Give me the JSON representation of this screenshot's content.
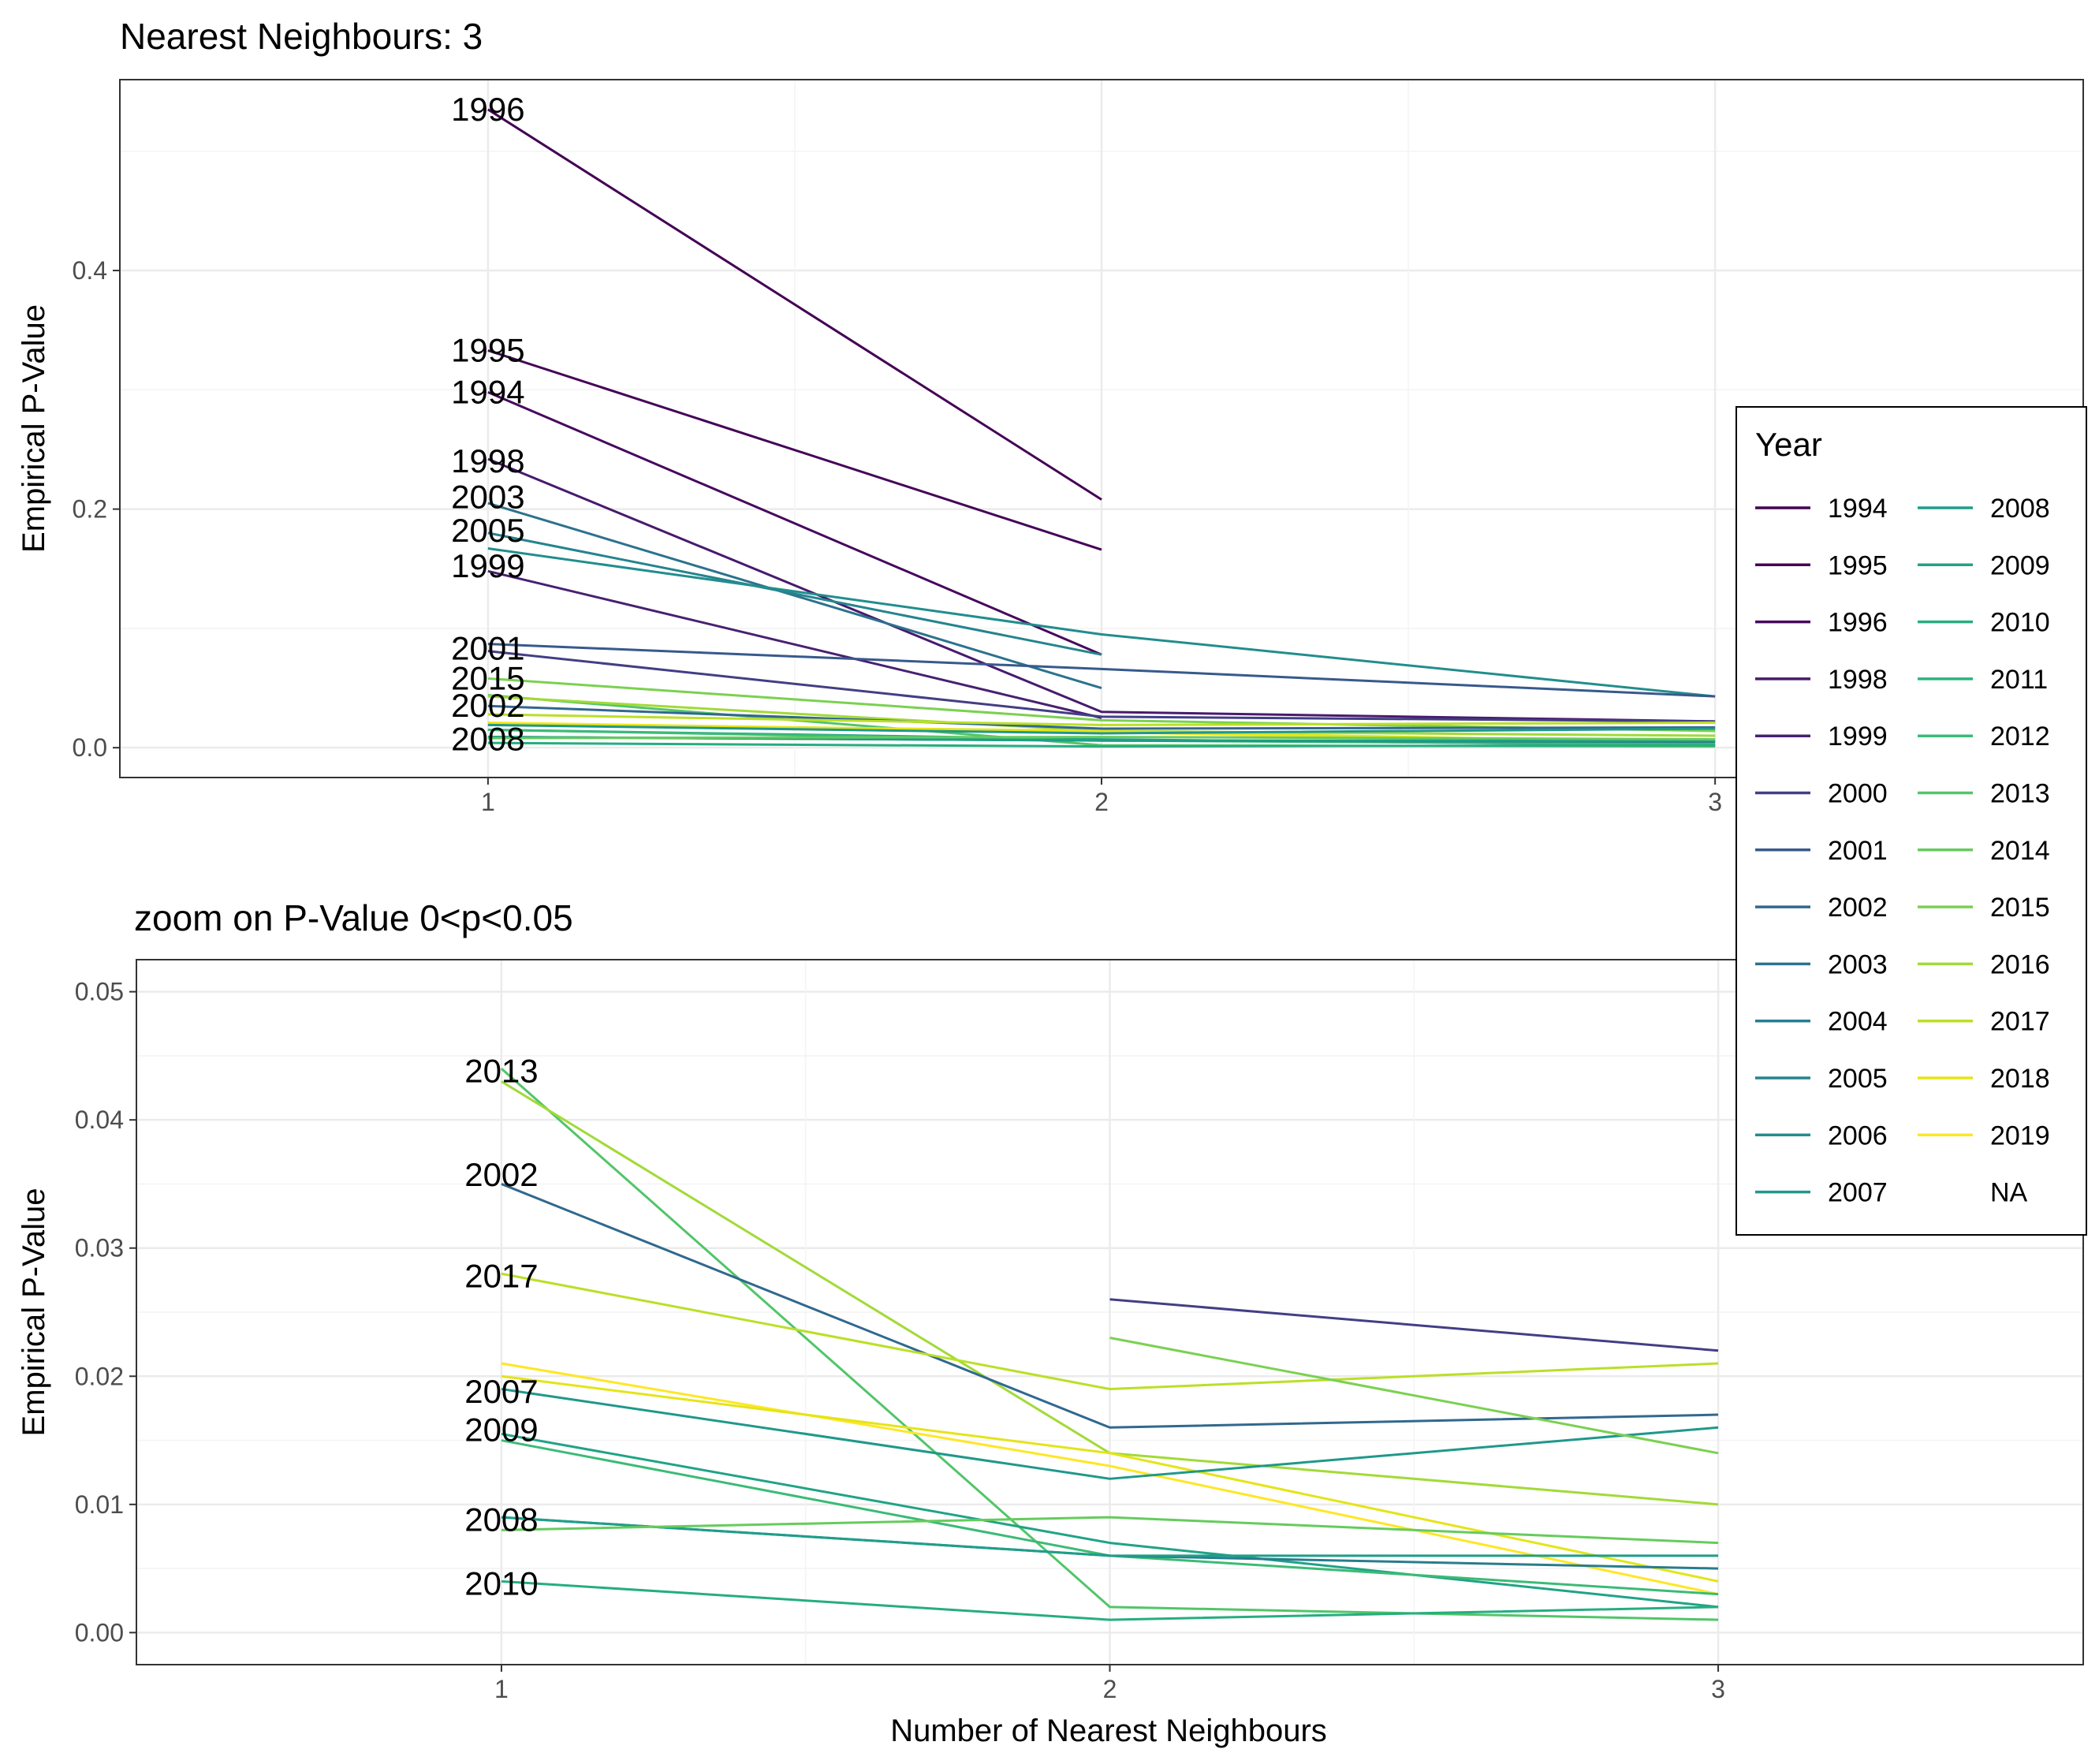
{
  "chart_data": [
    {
      "type": "line",
      "title": "Nearest Neighbours: 3",
      "xlabel": "",
      "ylabel": "Empirical P-Value",
      "x": [
        1,
        2,
        3
      ],
      "xlim": [
        0.4,
        3.6
      ],
      "ylim": [
        -0.025,
        0.56
      ],
      "x_ticks": [
        "1",
        "2",
        "3"
      ],
      "y_ticks": [
        "0.0",
        "0.2",
        "0.4"
      ],
      "y_tick_values": [
        0,
        0.2,
        0.4
      ],
      "grid": true,
      "series": [
        {
          "name": "1996",
          "color": "#440154",
          "values": [
            0.535,
            0.208,
            null
          ]
        },
        {
          "name": "1995",
          "color": "#450457",
          "values": [
            0.333,
            0.166,
            null
          ]
        },
        {
          "name": "1994",
          "color": "#46085C",
          "values": [
            0.298,
            0.078,
            null
          ]
        },
        {
          "name": "1998",
          "color": "#481A6C",
          "values": [
            0.242,
            0.03,
            0.022
          ]
        },
        {
          "name": "2003",
          "color": "#2C728E",
          "values": [
            0.205,
            0.05,
            null
          ]
        },
        {
          "name": "2005",
          "color": "#25848E",
          "values": [
            0.18,
            0.078,
            null
          ]
        },
        {
          "name": "2006",
          "color": "#228D8D",
          "values": [
            0.167,
            0.095,
            0.043
          ]
        },
        {
          "name": "1999",
          "color": "#482071",
          "values": [
            0.148,
            0.025,
            null
          ]
        },
        {
          "name": "2001",
          "color": "#38598C",
          "values": [
            0.087,
            0.066,
            0.043
          ]
        },
        {
          "name": "2000",
          "color": "#433E85",
          "values": [
            0.081,
            0.026,
            0.022
          ]
        },
        {
          "name": "2015",
          "color": "#7AD151",
          "values": [
            0.058,
            0.023,
            0.014
          ]
        },
        {
          "name": "2013",
          "color": "#52C569",
          "values": [
            0.044,
            0.002,
            0.001
          ]
        },
        {
          "name": "2016",
          "color": "#A2DA37",
          "values": [
            0.043,
            0.014,
            0.01
          ]
        },
        {
          "name": "2002",
          "color": "#31688E",
          "values": [
            0.035,
            0.016,
            0.017
          ]
        },
        {
          "name": "2017",
          "color": "#BBDF27",
          "values": [
            0.028,
            0.019,
            0.021
          ]
        },
        {
          "name": "2019",
          "color": "#FDE725",
          "values": [
            0.021,
            0.013,
            0.003
          ]
        },
        {
          "name": "2018",
          "color": "#E4E419",
          "values": [
            0.02,
            0.014,
            0.004
          ]
        },
        {
          "name": "2007",
          "color": "#1F988B",
          "values": [
            0.019,
            0.012,
            0.016
          ]
        },
        {
          "name": "2009",
          "color": "#20A386",
          "values": [
            0.015,
            0.007,
            0.002
          ]
        },
        {
          "name": "2012",
          "color": "#3BBB75",
          "values": [
            0.015,
            0.006,
            0.003
          ]
        },
        {
          "name": "2004",
          "color": "#287C8E",
          "values": [
            0.009,
            0.006,
            0.005
          ]
        },
        {
          "name": "2008",
          "color": "#1F9E89",
          "values": [
            0.009,
            0.006,
            0.006
          ]
        },
        {
          "name": "2014",
          "color": "#66CB5D",
          "values": [
            0.008,
            0.009,
            0.007
          ]
        },
        {
          "name": "2010",
          "color": "#26AD81",
          "values": [
            0.004,
            0.001,
            0.002
          ]
        }
      ],
      "point_labels": [
        {
          "text": "1996",
          "x": 1,
          "y": 0.535
        },
        {
          "text": "1995",
          "x": 1,
          "y": 0.333
        },
        {
          "text": "1994",
          "x": 1,
          "y": 0.298
        },
        {
          "text": "1998",
          "x": 1,
          "y": 0.24
        },
        {
          "text": "2003",
          "x": 1,
          "y": 0.21
        },
        {
          "text": "2005",
          "x": 1,
          "y": 0.182
        },
        {
          "text": "1999",
          "x": 1,
          "y": 0.152
        },
        {
          "text": "2001",
          "x": 1,
          "y": 0.083
        },
        {
          "text": "2015",
          "x": 1,
          "y": 0.058
        },
        {
          "text": "2002",
          "x": 1,
          "y": 0.035
        },
        {
          "text": "2008",
          "x": 1,
          "y": 0.007
        }
      ]
    },
    {
      "type": "line",
      "title": "zoom on P-Value 0<p<0.05",
      "xlabel": "Number of Nearest Neighbours",
      "ylabel": "Empirical P-Value",
      "x": [
        1,
        2,
        3
      ],
      "xlim": [
        0.4,
        3.6
      ],
      "ylim": [
        -0.0025,
        0.0525
      ],
      "x_ticks": [
        "1",
        "2",
        "3"
      ],
      "y_ticks": [
        "0.00",
        "0.01",
        "0.02",
        "0.03",
        "0.04",
        "0.05"
      ],
      "y_tick_values": [
        0,
        0.01,
        0.02,
        0.03,
        0.04,
        0.05
      ],
      "grid": true,
      "series": [
        {
          "name": "2013",
          "color": "#52C569",
          "values": [
            0.044,
            0.002,
            0.001
          ]
        },
        {
          "name": "2016",
          "color": "#A2DA37",
          "values": [
            0.043,
            0.014,
            0.01
          ]
        },
        {
          "name": "2002",
          "color": "#31688E",
          "values": [
            0.035,
            0.016,
            0.017
          ]
        },
        {
          "name": "2017",
          "color": "#BBDF27",
          "values": [
            0.028,
            0.019,
            0.021
          ]
        },
        {
          "name": "2019",
          "color": "#FDE725",
          "values": [
            0.021,
            0.013,
            0.003
          ]
        },
        {
          "name": "2018",
          "color": "#E4E419",
          "values": [
            0.02,
            0.014,
            0.004
          ]
        },
        {
          "name": "2007",
          "color": "#1F988B",
          "values": [
            0.019,
            0.012,
            0.016
          ]
        },
        {
          "name": "2009",
          "color": "#20A386",
          "values": [
            0.0155,
            0.007,
            0.002
          ]
        },
        {
          "name": "2012",
          "color": "#3BBB75",
          "values": [
            0.015,
            0.006,
            0.003
          ]
        },
        {
          "name": "2004",
          "color": "#287C8E",
          "values": [
            0.009,
            0.006,
            0.005
          ]
        },
        {
          "name": "2008",
          "color": "#1F9E89",
          "values": [
            0.009,
            0.006,
            0.006
          ]
        },
        {
          "name": "2014",
          "color": "#66CB5D",
          "values": [
            0.008,
            0.009,
            0.007
          ]
        },
        {
          "name": "2010",
          "color": "#26AD81",
          "values": [
            0.004,
            0.001,
            0.002
          ]
        },
        {
          "name": "2000",
          "color": "#433E85",
          "values": [
            null,
            0.026,
            0.022
          ]
        },
        {
          "name": "2015",
          "color": "#7AD151",
          "values": [
            null,
            0.023,
            0.014
          ]
        }
      ],
      "point_labels": [
        {
          "text": "2013",
          "x": 1,
          "y": 0.0438
        },
        {
          "text": "2002",
          "x": 1,
          "y": 0.0357
        },
        {
          "text": "2017",
          "x": 1,
          "y": 0.0278
        },
        {
          "text": "2007",
          "x": 1,
          "y": 0.0188
        },
        {
          "text": "2009",
          "x": 1,
          "y": 0.0158
        },
        {
          "text": "2008",
          "x": 1,
          "y": 0.0088
        },
        {
          "text": "2010",
          "x": 1,
          "y": 0.0038
        }
      ]
    }
  ],
  "legend": {
    "title": "Year",
    "placement": "right",
    "columns": [
      [
        {
          "label": "1994",
          "color": "#440154"
        },
        {
          "label": "1995",
          "color": "#450457"
        },
        {
          "label": "1996",
          "color": "#46085C"
        },
        {
          "label": "1998",
          "color": "#481A6C"
        },
        {
          "label": "1999",
          "color": "#482071"
        },
        {
          "label": "2000",
          "color": "#433E85"
        },
        {
          "label": "2001",
          "color": "#38598C"
        },
        {
          "label": "2002",
          "color": "#31688E"
        },
        {
          "label": "2003",
          "color": "#2C728E"
        },
        {
          "label": "2004",
          "color": "#287C8E"
        },
        {
          "label": "2005",
          "color": "#25848E"
        },
        {
          "label": "2006",
          "color": "#228D8D"
        },
        {
          "label": "2007",
          "color": "#1F988B"
        }
      ],
      [
        {
          "label": "2008",
          "color": "#1F9E89"
        },
        {
          "label": "2009",
          "color": "#20A386"
        },
        {
          "label": "2010",
          "color": "#26AD81"
        },
        {
          "label": "2011",
          "color": "#2EB37C"
        },
        {
          "label": "2012",
          "color": "#3BBB75"
        },
        {
          "label": "2013",
          "color": "#52C569"
        },
        {
          "label": "2014",
          "color": "#66CB5D"
        },
        {
          "label": "2015",
          "color": "#7AD151"
        },
        {
          "label": "2016",
          "color": "#A2DA37"
        },
        {
          "label": "2017",
          "color": "#BBDF27"
        },
        {
          "label": "2018",
          "color": "#E4E419"
        },
        {
          "label": "2019",
          "color": "#FDE725"
        },
        {
          "label": "NA",
          "color": null
        }
      ]
    ]
  }
}
